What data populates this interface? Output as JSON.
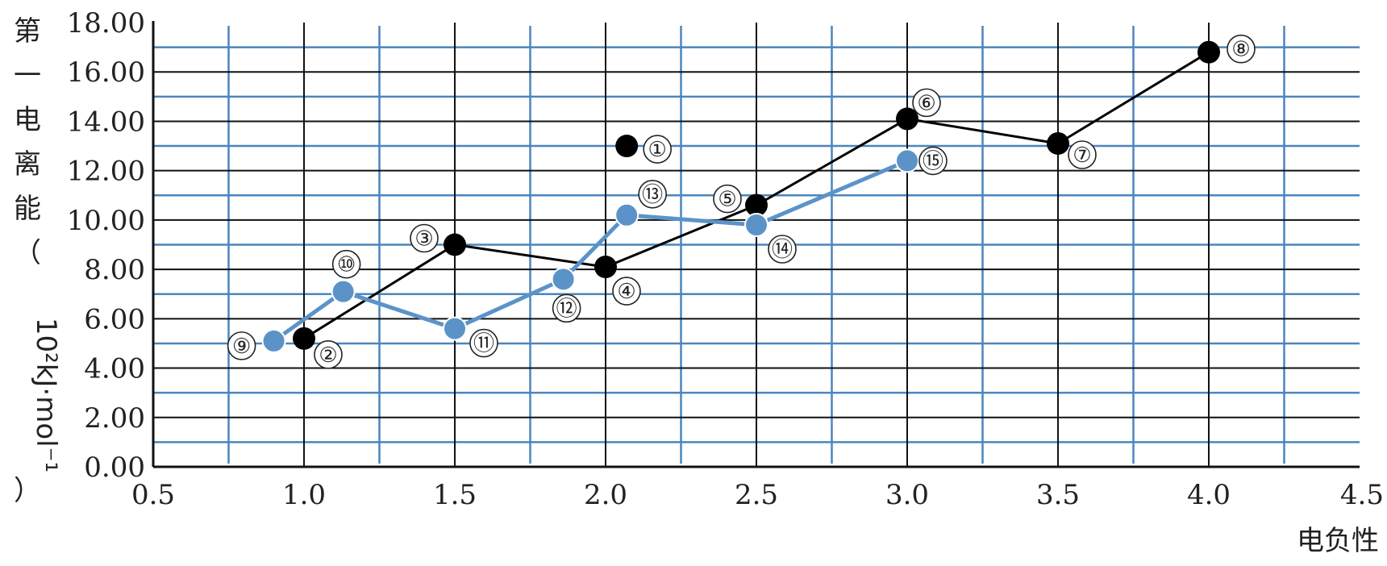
{
  "chart_data": {
    "type": "line",
    "title": "",
    "xlabel": "电负性",
    "ylabel": "第一电离能（10²kJ·mol⁻¹）",
    "ylabel_lines": [
      "第",
      "一",
      "电",
      "离",
      "能",
      "（",
      "10²kJ·mol⁻¹",
      "）"
    ],
    "xlim": [
      0.5,
      4.5
    ],
    "ylim": [
      0,
      18
    ],
    "x_ticks": [
      "0.5",
      "1.0",
      "1.5",
      "2.0",
      "2.5",
      "3.0",
      "3.5",
      "4.0",
      "4.5"
    ],
    "y_ticks": [
      "0.00",
      "2.00",
      "4.00",
      "6.00",
      "8.00",
      "10.00",
      "12.00",
      "14.00",
      "16.00",
      "18.00"
    ],
    "series": [
      {
        "name": "black",
        "color": "#000000",
        "points": [
          {
            "label": "①",
            "x": 2.07,
            "y": 13.0,
            "connected": false
          },
          {
            "label": "②",
            "x": 1.0,
            "y": 5.2,
            "connected": true
          },
          {
            "label": "③",
            "x": 1.5,
            "y": 9.0,
            "connected": true
          },
          {
            "label": "④",
            "x": 2.0,
            "y": 8.1,
            "connected": true
          },
          {
            "label": "⑤",
            "x": 2.5,
            "y": 10.6,
            "connected": true
          },
          {
            "label": "⑥",
            "x": 3.0,
            "y": 14.1,
            "connected": true
          },
          {
            "label": "⑦",
            "x": 3.5,
            "y": 13.1,
            "connected": true
          },
          {
            "label": "⑧",
            "x": 4.0,
            "y": 16.8,
            "connected": true
          }
        ]
      },
      {
        "name": "blue",
        "color": "#5b93c9",
        "points": [
          {
            "label": "⑨",
            "x": 0.9,
            "y": 5.1,
            "connected": true
          },
          {
            "label": "⑩",
            "x": 1.13,
            "y": 7.1,
            "connected": true
          },
          {
            "label": "⑪",
            "x": 1.5,
            "y": 5.6,
            "connected": true
          },
          {
            "label": "⑫",
            "x": 1.86,
            "y": 7.6,
            "connected": true
          },
          {
            "label": "⑬",
            "x": 2.07,
            "y": 10.2,
            "connected": true
          },
          {
            "label": "⑭",
            "x": 2.5,
            "y": 9.8,
            "connected": true
          },
          {
            "label": "⑮",
            "x": 3.0,
            "y": 12.4,
            "connected": true
          }
        ]
      }
    ],
    "grid": true
  },
  "colors": {
    "black_grid": "#111111",
    "blue_grid": "#4a86bd",
    "blue_series": "#5b93c9"
  }
}
